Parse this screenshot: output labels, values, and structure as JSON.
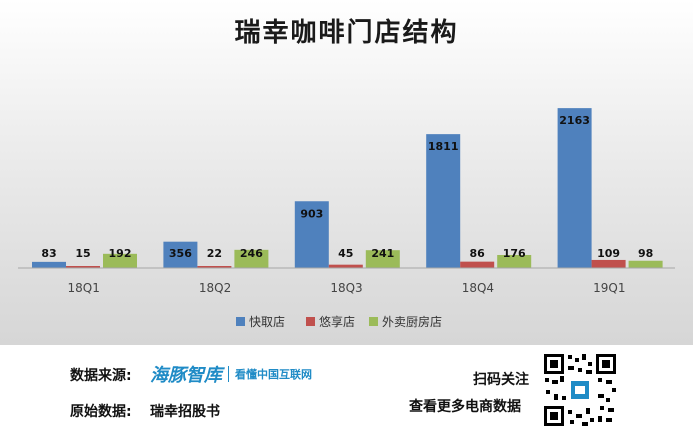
{
  "chart_data": {
    "type": "bar",
    "title": "瑞幸咖啡门店结构",
    "categories": [
      "18Q1",
      "18Q2",
      "18Q3",
      "18Q4",
      "19Q1"
    ],
    "series": [
      {
        "name": "快取店",
        "color": "#4f81bd",
        "values": [
          83,
          356,
          903,
          1811,
          2163
        ]
      },
      {
        "name": "悠享店",
        "color": "#c0504d",
        "values": [
          15,
          22,
          45,
          86,
          109
        ]
      },
      {
        "name": "外卖厨房店",
        "color": "#9bbb59",
        "values": [
          192,
          246,
          241,
          176,
          98
        ]
      }
    ],
    "ylim": [
      0,
      2300
    ],
    "legend_position": "bottom",
    "grid": false
  },
  "footer": {
    "data_source_label": "数据来源:",
    "brand_name": "海豚智库",
    "brand_slogan": "看懂中国互联网",
    "raw_data_label": "原始数据:",
    "raw_data_value": "瑞幸招股书",
    "scan_label": "扫码关注",
    "more_label": "查看更多电商数据"
  }
}
